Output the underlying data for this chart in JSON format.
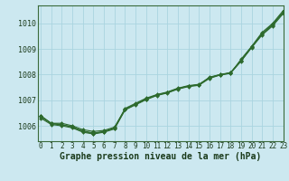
{
  "background_color": "#cce8f0",
  "plot_bg_color": "#cce8f0",
  "grid_color": "#aad4e0",
  "line_color": "#2d6a2d",
  "xlabel": "Graphe pression niveau de la mer (hPa)",
  "xlim": [
    -0.3,
    23.0
  ],
  "ylim": [
    1005.4,
    1010.7
  ],
  "yticks": [
    1006,
    1007,
    1008,
    1009,
    1010
  ],
  "xticks": [
    0,
    1,
    2,
    3,
    4,
    5,
    6,
    7,
    8,
    9,
    10,
    11,
    12,
    13,
    14,
    15,
    16,
    17,
    18,
    19,
    20,
    21,
    22,
    23
  ],
  "series": [
    [
      1006.4,
      1006.1,
      1006.1,
      1006.0,
      1005.85,
      1005.78,
      1005.82,
      1005.95,
      1006.65,
      1006.85,
      1007.05,
      1007.2,
      1007.3,
      1007.45,
      1007.55,
      1007.6,
      1007.9,
      1008.0,
      1008.05,
      1008.6,
      1009.1,
      1009.65,
      1010.0,
      1010.5
    ],
    [
      1006.35,
      1006.1,
      1006.05,
      1005.95,
      1005.8,
      1005.72,
      1005.78,
      1005.92,
      1006.68,
      1006.88,
      1007.08,
      1007.22,
      1007.32,
      1007.47,
      1007.57,
      1007.62,
      1007.88,
      1008.0,
      1008.08,
      1008.55,
      1009.08,
      1009.6,
      1009.97,
      1010.45
    ],
    [
      1006.3,
      1006.05,
      1006.0,
      1005.92,
      1005.75,
      1005.68,
      1005.75,
      1005.88,
      1006.62,
      1006.82,
      1007.02,
      1007.18,
      1007.28,
      1007.43,
      1007.53,
      1007.58,
      1007.85,
      1007.98,
      1008.05,
      1008.52,
      1009.05,
      1009.55,
      1009.9,
      1010.38
    ],
    [
      1006.38,
      1006.08,
      1006.04,
      1005.96,
      1005.78,
      1005.7,
      1005.77,
      1005.9,
      1006.64,
      1006.84,
      1007.04,
      1007.2,
      1007.3,
      1007.45,
      1007.55,
      1007.6,
      1007.87,
      1007.99,
      1008.07,
      1008.54,
      1009.07,
      1009.58,
      1009.94,
      1010.42
    ]
  ],
  "marker": "D",
  "markersize": 2.0,
  "linewidth": 0.8,
  "xlabel_fontsize": 7,
  "tick_fontsize": 5.5
}
